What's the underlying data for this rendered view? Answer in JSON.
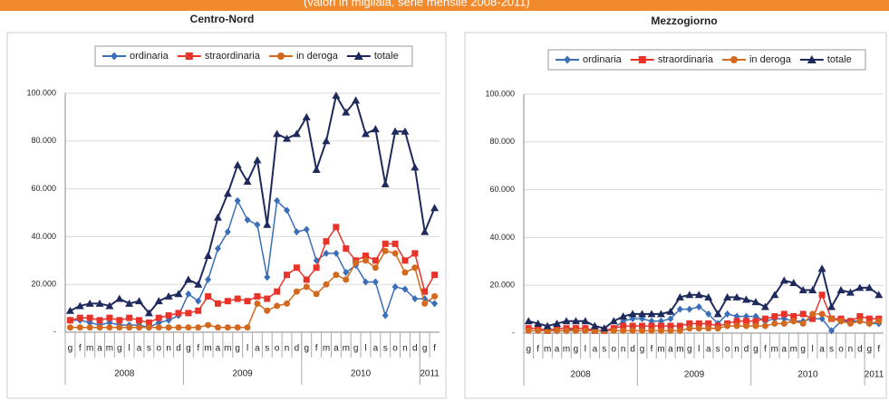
{
  "header": {
    "text": "(valori in migliaia, serie mensile 2008-2011)"
  },
  "chart_data": [
    {
      "type": "line",
      "title": "Centro-Nord",
      "categories": [
        "g",
        "f",
        "m",
        "a",
        "m",
        "g",
        "l",
        "a",
        "s",
        "o",
        "n",
        "d",
        "g",
        "f",
        "m",
        "a",
        "m",
        "g",
        "l",
        "a",
        "s",
        "o",
        "n",
        "d",
        "g",
        "f",
        "m",
        "a",
        "m",
        "g",
        "l",
        "a",
        "s",
        "o",
        "n",
        "d",
        "g",
        "f"
      ],
      "years": [
        "2008",
        "2009",
        "2010",
        "2011"
      ],
      "ylim": [
        0,
        100000
      ],
      "yticks": [
        {
          "value": 0,
          "label": "-"
        },
        {
          "value": 20000,
          "label": "20.000"
        },
        {
          "value": 40000,
          "label": "40.000"
        },
        {
          "value": 60000,
          "label": "60.000"
        },
        {
          "value": 80000,
          "label": "80.000"
        },
        {
          "value": 100000,
          "label": "100.000"
        }
      ],
      "grid": true,
      "series": [
        {
          "name": "ordinaria",
          "color": "#3a6fb7",
          "marker": "diamond",
          "values": [
            5000,
            5000,
            4000,
            3000,
            4000,
            3000,
            3000,
            3000,
            2000,
            4000,
            5000,
            7000,
            16000,
            13000,
            22000,
            35000,
            42000,
            55000,
            47000,
            45000,
            23000,
            55000,
            51000,
            42000,
            43000,
            30000,
            33000,
            33000,
            25000,
            28000,
            21000,
            21000,
            7000,
            19000,
            18000,
            14000,
            14000,
            12000
          ]
        },
        {
          "name": "straordinaria",
          "color": "#e8332a",
          "marker": "square",
          "values": [
            5000,
            6000,
            6000,
            5000,
            6000,
            5000,
            6000,
            5000,
            4000,
            6000,
            7000,
            8000,
            8000,
            9000,
            15000,
            12000,
            13000,
            14000,
            13000,
            15000,
            14000,
            17000,
            24000,
            27000,
            22000,
            27000,
            38000,
            44000,
            35000,
            30000,
            32000,
            30000,
            37000,
            37000,
            30000,
            33000,
            17000,
            24000
          ]
        },
        {
          "name": "in deroga",
          "color": "#d2691e",
          "marker": "circle",
          "values": [
            2000,
            2000,
            2000,
            2000,
            2000,
            2000,
            2000,
            2000,
            2000,
            2000,
            2000,
            2000,
            2000,
            2000,
            3000,
            2000,
            2000,
            2000,
            2000,
            12000,
            9000,
            11000,
            12000,
            17000,
            19000,
            16000,
            20000,
            24000,
            22000,
            29000,
            30000,
            27000,
            34000,
            33000,
            25000,
            27000,
            12000,
            15000
          ]
        },
        {
          "name": "totale",
          "color": "#1f2a5c",
          "marker": "triangle",
          "values": [
            9000,
            11000,
            12000,
            12000,
            11000,
            14000,
            12000,
            13000,
            8000,
            13000,
            15000,
            16000,
            22000,
            20000,
            32000,
            48000,
            58000,
            70000,
            63000,
            72000,
            45000,
            83000,
            81000,
            83000,
            90000,
            68000,
            80000,
            99000,
            92000,
            97000,
            83000,
            85000,
            62000,
            84000,
            84000,
            69000,
            42000,
            52000
          ]
        }
      ]
    },
    {
      "type": "line",
      "title": "Mezzogiorno",
      "categories": [
        "g",
        "f",
        "m",
        "a",
        "m",
        "g",
        "l",
        "a",
        "s",
        "o",
        "n",
        "d",
        "g",
        "f",
        "m",
        "a",
        "m",
        "g",
        "l",
        "a",
        "s",
        "o",
        "n",
        "d",
        "g",
        "f",
        "m",
        "a",
        "m",
        "g",
        "l",
        "a",
        "s",
        "o",
        "n",
        "d",
        "g",
        "f"
      ],
      "years": [
        "2008",
        "2009",
        "2010",
        "2011"
      ],
      "ylim": [
        0,
        100000
      ],
      "yticks": [
        {
          "value": 0,
          "label": "-"
        },
        {
          "value": 20000,
          "label": "20.000"
        },
        {
          "value": 40000,
          "label": "40.000"
        },
        {
          "value": 60000,
          "label": "60.000"
        },
        {
          "value": 80000,
          "label": "80.000"
        },
        {
          "value": 100000,
          "label": "100.000"
        }
      ],
      "grid": true,
      "series": [
        {
          "name": "ordinaria",
          "color": "#3a6fb7",
          "marker": "diamond",
          "values": [
            2000,
            2000,
            1000,
            1000,
            1000,
            2000,
            2000,
            1000,
            1000,
            2000,
            5000,
            6000,
            6000,
            5000,
            5000,
            6000,
            10000,
            10000,
            11000,
            8000,
            4000,
            8000,
            7000,
            7000,
            7000,
            5000,
            6000,
            6000,
            5000,
            5000,
            6000,
            6000,
            1000,
            5000,
            5000,
            5000,
            4000,
            4000
          ]
        },
        {
          "name": "straordinaria",
          "color": "#e8332a",
          "marker": "square",
          "values": [
            2000,
            2000,
            1000,
            2000,
            2000,
            2000,
            2000,
            1000,
            1000,
            2000,
            3000,
            3000,
            3000,
            3000,
            3000,
            3000,
            3000,
            4000,
            4000,
            4000,
            3000,
            4000,
            5000,
            5000,
            5000,
            6000,
            7000,
            8000,
            7000,
            8000,
            6000,
            16000,
            6000,
            6000,
            5000,
            7000,
            6000,
            6000
          ]
        },
        {
          "name": "in deroga",
          "color": "#d2691e",
          "marker": "circle",
          "values": [
            1000,
            1000,
            1000,
            1000,
            1000,
            1000,
            1000,
            1000,
            1000,
            1000,
            1000,
            1000,
            1000,
            1000,
            1000,
            1000,
            1000,
            2000,
            2000,
            2000,
            2000,
            3000,
            3000,
            3000,
            3000,
            3000,
            4000,
            4000,
            5000,
            4000,
            8000,
            8000,
            6000,
            5000,
            4000,
            5000,
            4000,
            5000
          ]
        },
        {
          "name": "totale",
          "color": "#1f2a5c",
          "marker": "triangle",
          "values": [
            5000,
            4000,
            3000,
            4000,
            5000,
            5000,
            5000,
            3000,
            2000,
            5000,
            7000,
            8000,
            8000,
            8000,
            8000,
            9000,
            15000,
            16000,
            16000,
            15000,
            8000,
            15000,
            15000,
            14000,
            13000,
            11000,
            16000,
            22000,
            21000,
            18000,
            18000,
            27000,
            11000,
            18000,
            17000,
            19000,
            19000,
            16000
          ]
        }
      ]
    }
  ]
}
